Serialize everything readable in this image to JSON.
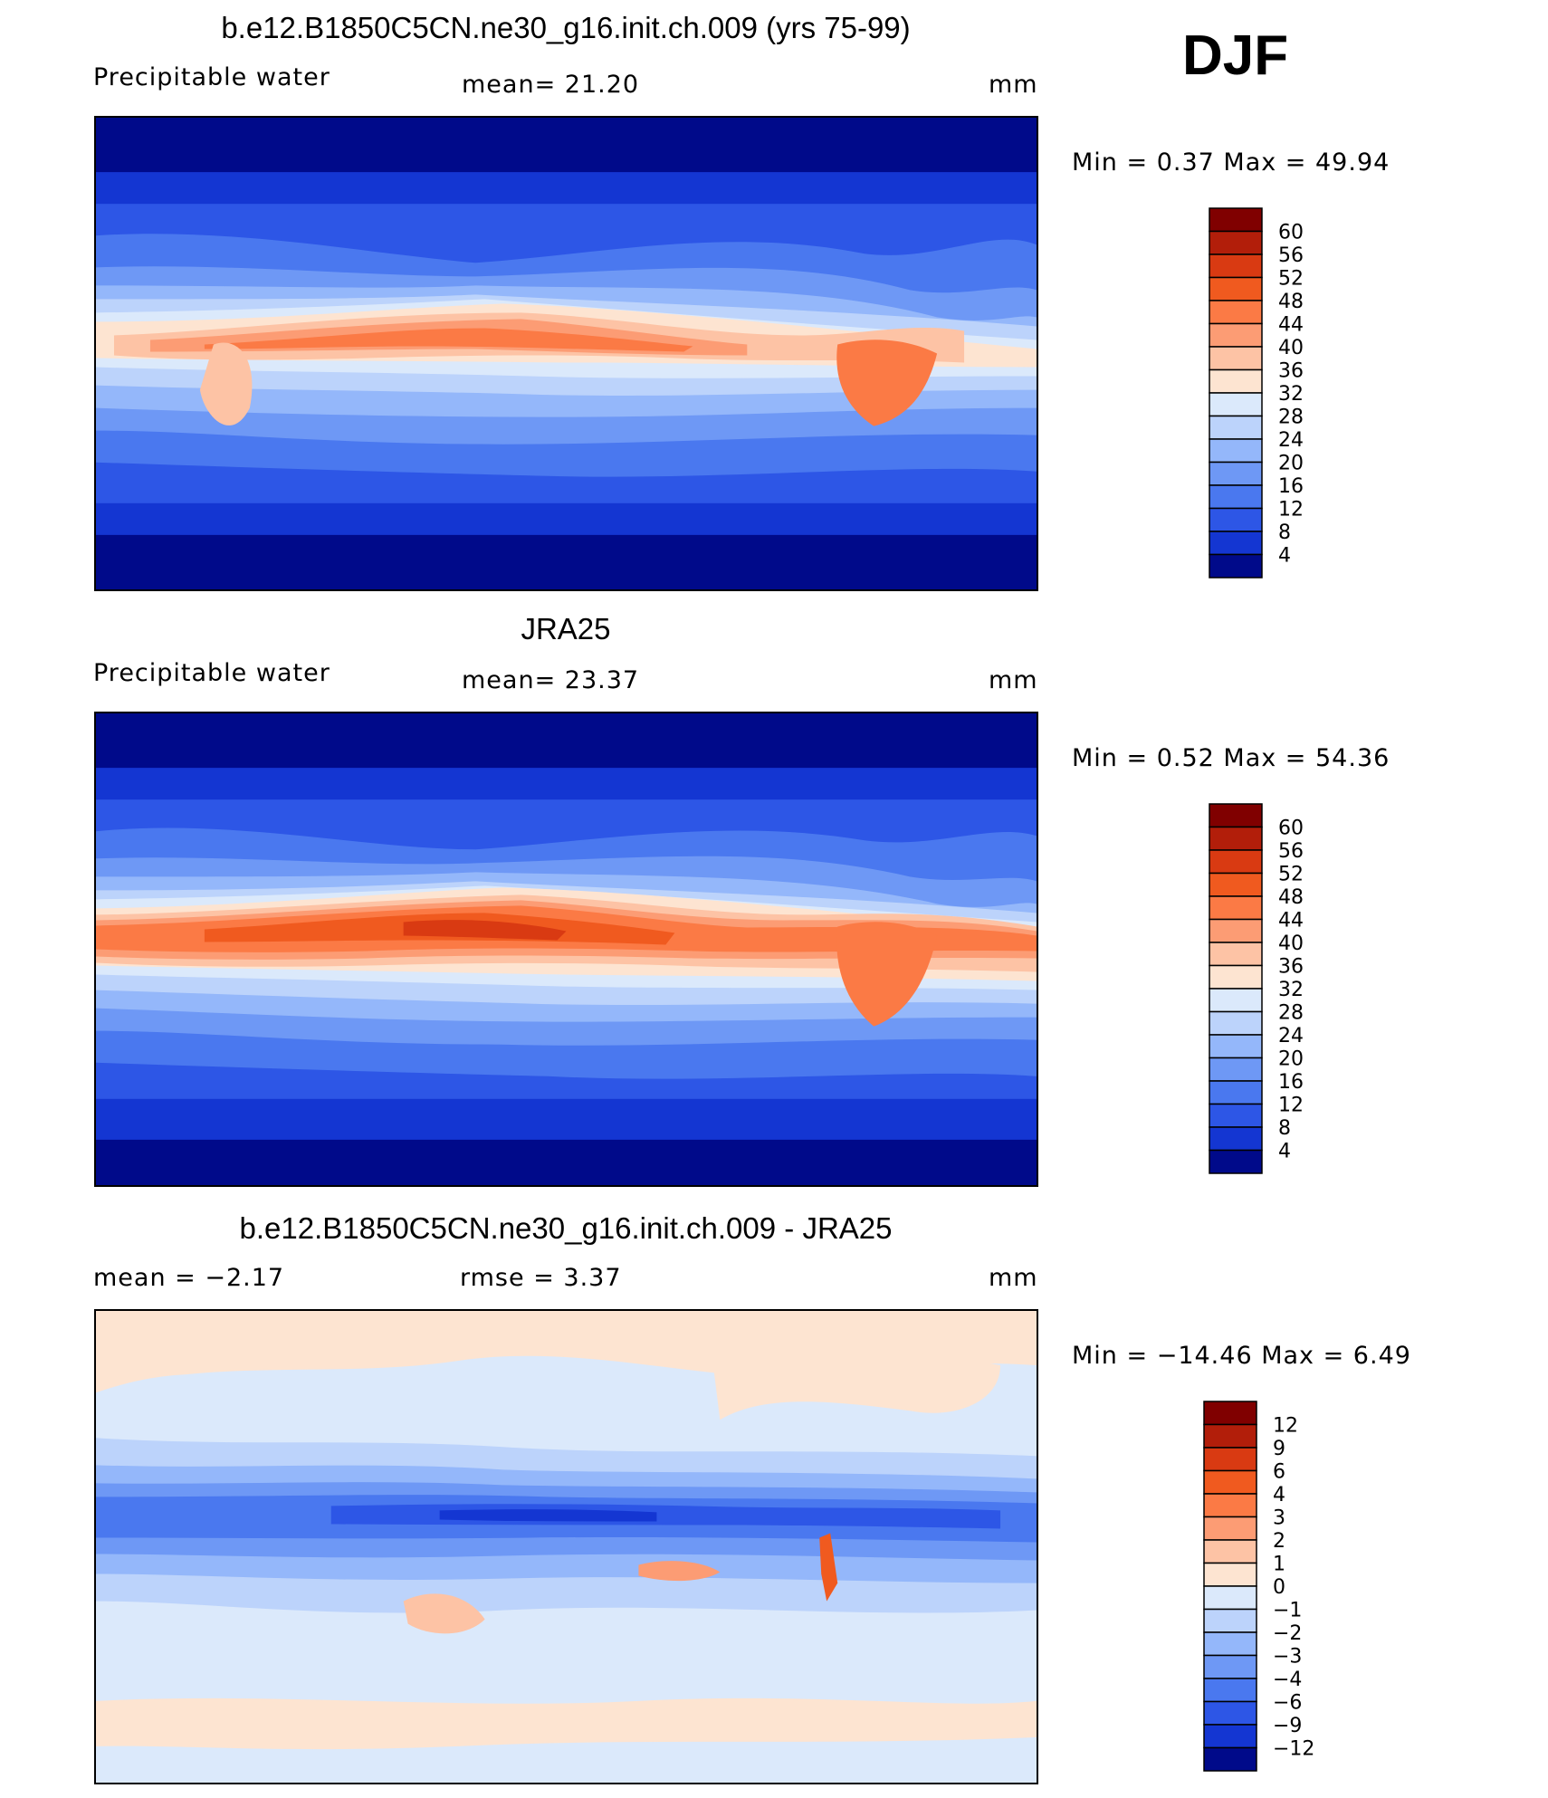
{
  "season": "DJF",
  "units": "mm",
  "chart_data": [
    {
      "type": "heatmap",
      "title": "b.e12.B1850C5CN.ne30_g16.init.ch.009 (yrs 75-99)",
      "left_label": "Precipitable  water",
      "stat_text": "mean=   21.20",
      "units": "mm",
      "mean": 21.2,
      "min_text": "Min  =     0.37  Max  =    49.94",
      "min": 0.37,
      "max": 49.94,
      "colorbar": {
        "levels": [
          "60",
          "56",
          "52",
          "48",
          "44",
          "40",
          "36",
          "32",
          "28",
          "24",
          "20",
          "16",
          "12",
          "8",
          "4"
        ],
        "colors": [
          "#800000",
          "#b21e0a",
          "#d93a12",
          "#f05a1f",
          "#fb7a45",
          "#fc9c74",
          "#fdc3a5",
          "#fde4d1",
          "#dbe9fb",
          "#bcd3fb",
          "#94b7fa",
          "#6e98f5",
          "#4a78ef",
          "#2d56e6",
          "#1436d2",
          "#000a8a"
        ]
      }
    },
    {
      "type": "heatmap",
      "title": "JRA25",
      "left_label": "Precipitable  water",
      "stat_text": "mean=   23.37",
      "units": "mm",
      "mean": 23.37,
      "min_text": "Min  =     0.52  Max  =    54.36",
      "min": 0.52,
      "max": 54.36,
      "colorbar": {
        "levels": [
          "60",
          "56",
          "52",
          "48",
          "44",
          "40",
          "36",
          "32",
          "28",
          "24",
          "20",
          "16",
          "12",
          "8",
          "4"
        ],
        "colors": [
          "#800000",
          "#b21e0a",
          "#d93a12",
          "#f05a1f",
          "#fb7a45",
          "#fc9c74",
          "#fdc3a5",
          "#fde4d1",
          "#dbe9fb",
          "#bcd3fb",
          "#94b7fa",
          "#6e98f5",
          "#4a78ef",
          "#2d56e6",
          "#1436d2",
          "#000a8a"
        ]
      }
    },
    {
      "type": "heatmap",
      "title": "b.e12.B1850C5CN.ne30_g16.init.ch.009 - JRA25",
      "left_label": "mean  =    −2.17",
      "stat_text": "rmse  =      3.37",
      "units": "mm",
      "mean": -2.17,
      "rmse": 3.37,
      "min_text": "Min  =  −14.46  Max  =     6.49",
      "min": -14.46,
      "max": 6.49,
      "colorbar": {
        "levels": [
          "12",
          "9",
          "6",
          "4",
          "3",
          "2",
          "1",
          "0",
          "−1",
          "−2",
          "−3",
          "−4",
          "−6",
          "−9",
          "−12"
        ],
        "colors": [
          "#800000",
          "#b21e0a",
          "#d93a12",
          "#f05a1f",
          "#fb7a45",
          "#fc9c74",
          "#fdc3a5",
          "#fde4d1",
          "#dbe9fb",
          "#bcd3fb",
          "#94b7fa",
          "#6e98f5",
          "#4a78ef",
          "#2d56e6",
          "#1436d2",
          "#000a8a"
        ]
      }
    }
  ]
}
